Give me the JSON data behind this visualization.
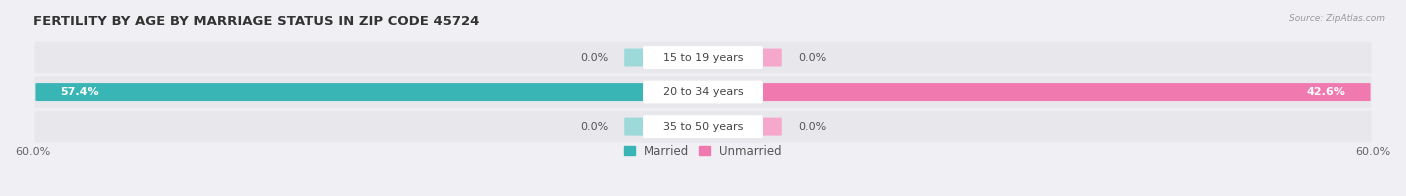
{
  "title": "FERTILITY BY AGE BY MARRIAGE STATUS IN ZIP CODE 45724",
  "source": "Source: ZipAtlas.com",
  "rows": [
    {
      "label": "15 to 19 years",
      "married": 0.0,
      "unmarried": 0.0
    },
    {
      "label": "20 to 34 years",
      "married": 57.4,
      "unmarried": 42.6
    },
    {
      "label": "35 to 50 years",
      "married": 0.0,
      "unmarried": 0.0
    }
  ],
  "max_val": 60.0,
  "married_color": "#3ab5b5",
  "unmarried_color": "#f07ab0",
  "married_light": "#9dd9d9",
  "unmarried_light": "#f5a8cc",
  "row_bg_color": "#e8e8ec",
  "title_fontsize": 9.5,
  "label_fontsize": 8,
  "value_fontsize": 8,
  "tick_fontsize": 8,
  "legend_fontsize": 8.5
}
